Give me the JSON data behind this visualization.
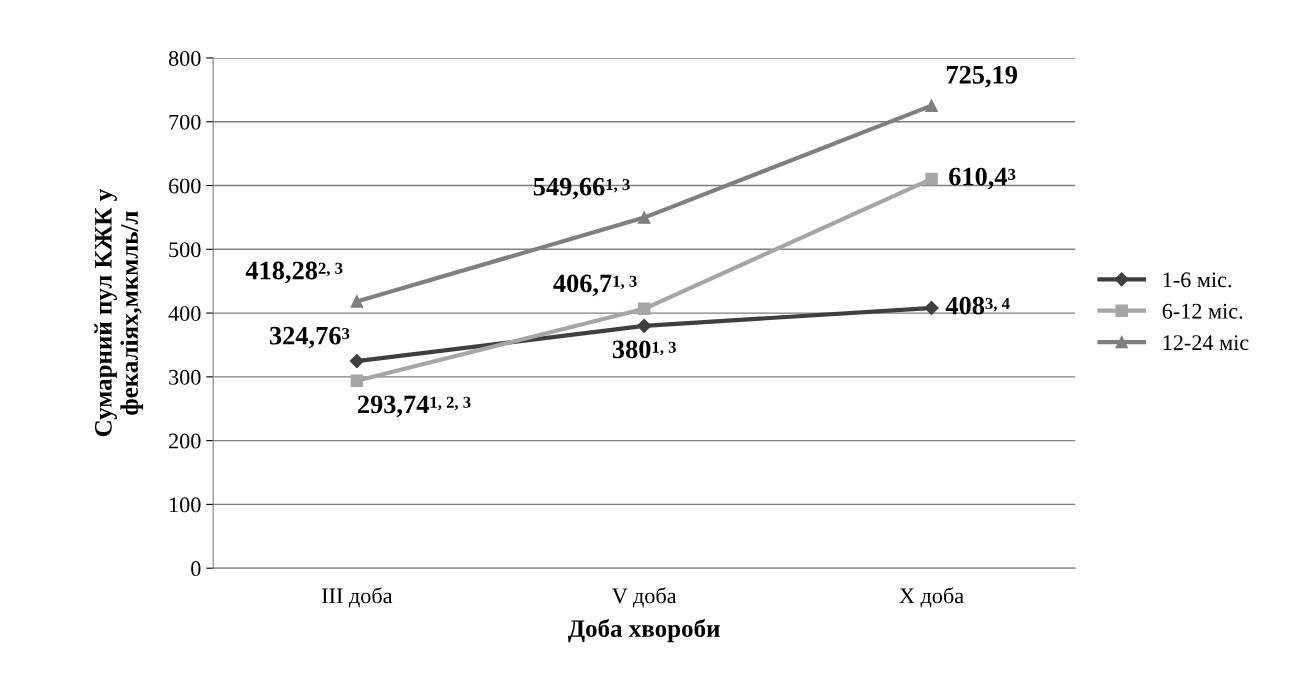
{
  "chart_data": {
    "type": "line",
    "categories": [
      "III доба",
      "V доба",
      "X доба"
    ],
    "xlabel": "Доба хвороби",
    "ylabel": "Сумарний пул КЖК у\nфекаліях,мкмль/л",
    "ylim": [
      0,
      800
    ],
    "yticks": [
      0,
      100,
      200,
      300,
      400,
      500,
      600,
      700,
      800
    ],
    "grid": "y",
    "legend": "right",
    "series": [
      {
        "name": "1-6 міс.",
        "color": "#3f3f3f",
        "marker": "diamond",
        "values": [
          324.76,
          380,
          408
        ],
        "value_labels": [
          "324,76$^{3}$",
          "380$^{1, 3}$",
          "408$^{3, 4}$"
        ]
      },
      {
        "name": "6-12 міс.",
        "color": "#a6a6a6",
        "marker": "square",
        "values": [
          293.74,
          406.7,
          610.4
        ],
        "value_labels": [
          "293,74$^{1, 2, 3}$",
          "406,7$^{1, 3}$",
          "610,4$^{3}$"
        ]
      },
      {
        "name": "12-24 міс",
        "color": "#7f7f7f",
        "marker": "triangle",
        "values": [
          418.28,
          549.66,
          725.19
        ],
        "value_labels": [
          "418,28$^{2, 3}$",
          "549,66$^{1, 3}$",
          "725,19"
        ]
      }
    ]
  }
}
